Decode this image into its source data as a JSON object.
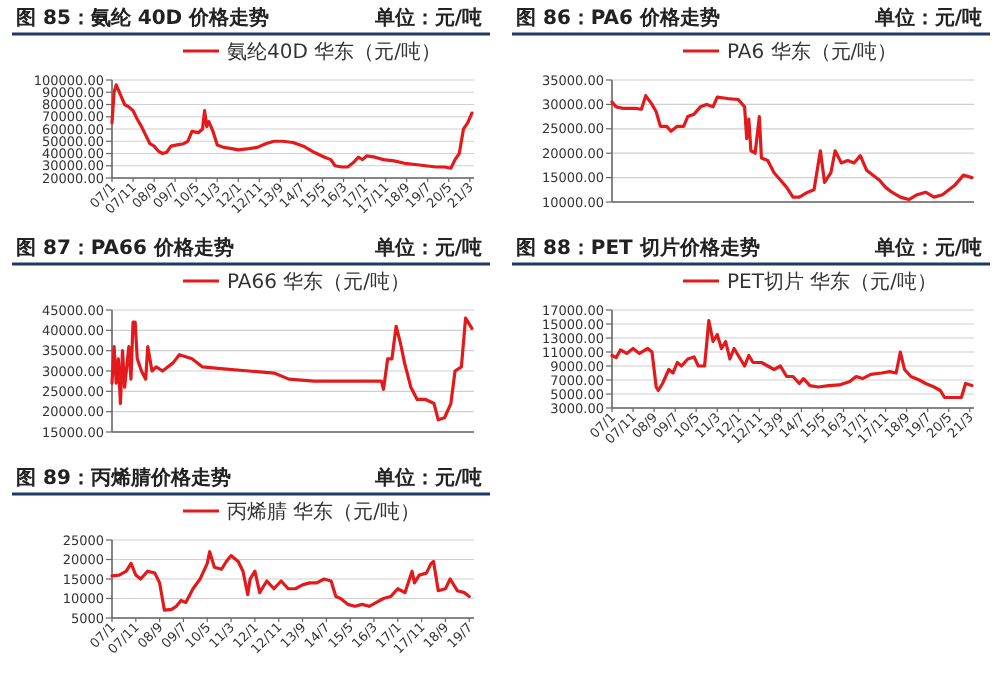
{
  "chart_data": [
    {
      "type": "line",
      "title": "图 85：氨纶 40D 价格走势",
      "subtitle": "单位：元/吨",
      "grid": "y",
      "legend": "top",
      "x": [
        "2007-01",
        "2007-02",
        "2007-03",
        "2007-05",
        "2007-07",
        "2007-09",
        "2007-11",
        "2008-01",
        "2008-03",
        "2008-05",
        "2008-07",
        "2008-09",
        "2008-11",
        "2009-01",
        "2009-03",
        "2009-05",
        "2009-08",
        "2009-11",
        "2010-01",
        "2010-03",
        "2010-06",
        "2010-08",
        "2010-09",
        "2010-10",
        "2010-11",
        "2011-01",
        "2011-03",
        "2011-06",
        "2011-10",
        "2012-01",
        "2012-06",
        "2012-10",
        "2013-02",
        "2013-06",
        "2013-10",
        "2014-03",
        "2014-08",
        "2015-01",
        "2015-06",
        "2015-09",
        "2015-11",
        "2016-02",
        "2016-05",
        "2016-08",
        "2016-10",
        "2016-12",
        "2017-02",
        "2017-06",
        "2017-10",
        "2018-03",
        "2018-08",
        "2019-01",
        "2019-06",
        "2019-11",
        "2020-03",
        "2020-06",
        "2020-08",
        "2020-10",
        "2020-12",
        "2021-02",
        "2021-04"
      ],
      "series": [
        {
          "name": "氨纶40D 华东（元/吨）",
          "color": "#e31a1c",
          "values": [
            65000,
            90000,
            96000,
            88000,
            80000,
            78000,
            75000,
            68000,
            62000,
            55000,
            48000,
            46000,
            42000,
            40000,
            41000,
            46000,
            47000,
            48000,
            50000,
            58000,
            57000,
            60000,
            75000,
            62000,
            66000,
            58000,
            47000,
            45000,
            44000,
            43000,
            44000,
            45000,
            48000,
            50000,
            50000,
            49000,
            46000,
            41000,
            37000,
            35000,
            30000,
            29000,
            29000,
            33000,
            37000,
            35000,
            38000,
            37000,
            35000,
            34000,
            32000,
            31000,
            30000,
            29000,
            29000,
            28000,
            35000,
            40000,
            60000,
            65000,
            73000
          ]
        }
      ],
      "xlim": [
        "2007-01",
        "2021-05"
      ],
      "xticks": [
        {
          "value": "2007-01",
          "label": "07/1"
        },
        {
          "value": "2007-11",
          "label": "07/11"
        },
        {
          "value": "2008-09",
          "label": "08/9"
        },
        {
          "value": "2009-07",
          "label": "09/7"
        },
        {
          "value": "2010-05",
          "label": "10/5"
        },
        {
          "value": "2011-03",
          "label": "11/3"
        },
        {
          "value": "2012-01",
          "label": "12/1"
        },
        {
          "value": "2012-11",
          "label": "12/11"
        },
        {
          "value": "2013-09",
          "label": "13/9"
        },
        {
          "value": "2014-07",
          "label": "14/7"
        },
        {
          "value": "2015-05",
          "label": "15/5"
        },
        {
          "value": "2016-03",
          "label": "16/3"
        },
        {
          "value": "2017-01",
          "label": "17/1"
        },
        {
          "value": "2017-11",
          "label": "17/11"
        },
        {
          "value": "2018-09",
          "label": "18/9"
        },
        {
          "value": "2019-07",
          "label": "19/7"
        },
        {
          "value": "2020-05",
          "label": "20/5"
        },
        {
          "value": "2021-03",
          "label": "21/3"
        }
      ],
      "ylim": [
        20000,
        100000
      ],
      "yticks": [
        {
          "value": 20000,
          "label": "20000.00"
        },
        {
          "value": 30000,
          "label": "30000.00"
        },
        {
          "value": 40000,
          "label": "40000.00"
        },
        {
          "value": 50000,
          "label": "50000.00"
        },
        {
          "value": 60000,
          "label": "60000.00"
        },
        {
          "value": 70000,
          "label": "70000.00"
        },
        {
          "value": 80000,
          "label": "80000.00"
        },
        {
          "value": 90000,
          "label": "90000.00"
        },
        {
          "value": 100000,
          "label": "100000.00"
        }
      ]
    },
    {
      "type": "line",
      "title": "图 86：PA6 价格走势",
      "subtitle": "单位：元/吨",
      "grid": "y",
      "legend": "top",
      "tick_labels": "y",
      "x": [
        "2007-01",
        "2007-03",
        "2007-06",
        "2007-12",
        "2008-03",
        "2008-05",
        "2008-08",
        "2008-10",
        "2008-12",
        "2009-03",
        "2009-05",
        "2009-08",
        "2009-11",
        "2010-01",
        "2010-04",
        "2010-07",
        "2010-10",
        "2011-01",
        "2011-03",
        "2011-08",
        "2012-01",
        "2012-04",
        "2012-05",
        "2012-06",
        "2012-07",
        "2012-09",
        "2012-11",
        "2012-12",
        "2013-03",
        "2013-06",
        "2013-09",
        "2013-12",
        "2014-03",
        "2014-06",
        "2014-10",
        "2015-01",
        "2015-04",
        "2015-06",
        "2015-09",
        "2015-11",
        "2016-02",
        "2016-05",
        "2016-08",
        "2016-11",
        "2017-02",
        "2017-05",
        "2017-08",
        "2017-11",
        "2018-02",
        "2018-06",
        "2018-10",
        "2019-02",
        "2019-06",
        "2019-10",
        "2020-02",
        "2020-08",
        "2020-12",
        "2021-04"
      ],
      "series": [
        {
          "name": "PA6 华东（元/吨）",
          "color": "#e31a1c",
          "values": [
            30500,
            29500,
            29200,
            29200,
            29000,
            31800,
            30000,
            28500,
            25500,
            25500,
            24500,
            25500,
            25500,
            27500,
            28000,
            29500,
            30000,
            29500,
            31500,
            31200,
            31000,
            29500,
            23000,
            27000,
            20500,
            20000,
            27500,
            19000,
            18500,
            16000,
            14500,
            13000,
            11000,
            11000,
            12000,
            12500,
            20500,
            14000,
            16000,
            20500,
            18000,
            18500,
            18000,
            19500,
            16500,
            15500,
            14500,
            13000,
            12000,
            11000,
            10500,
            11500,
            12000,
            11000,
            11500,
            13500,
            15500,
            15000
          ]
        }
      ],
      "xlim": [
        "2007-01",
        "2021-05"
      ],
      "ylim": [
        10000,
        35000
      ],
      "yticks": [
        {
          "value": 10000,
          "label": "10000.00"
        },
        {
          "value": 15000,
          "label": "15000.00"
        },
        {
          "value": 20000,
          "label": "20000.00"
        },
        {
          "value": 25000,
          "label": "25000.00"
        },
        {
          "value": 30000,
          "label": "30000.00"
        },
        {
          "value": 35000,
          "label": "35000.00"
        }
      ]
    },
    {
      "type": "line",
      "title": "图 87：PA66 价格走势",
      "subtitle": "单位：元/吨",
      "grid": "y",
      "legend": "top",
      "tick_labels": "y",
      "x": [
        "2007-01",
        "2007-02",
        "2007-03",
        "2007-04",
        "2007-05",
        "2007-06",
        "2007-07",
        "2007-09",
        "2007-10",
        "2007-11",
        "2007-12",
        "2008-01",
        "2008-03",
        "2008-05",
        "2008-06",
        "2008-08",
        "2008-10",
        "2009-01",
        "2009-06",
        "2009-09",
        "2010-03",
        "2010-08",
        "2011-06",
        "2012-06",
        "2013-06",
        "2014-01",
        "2015-01",
        "2016-01",
        "2017-01",
        "2017-09",
        "2017-10",
        "2017-12",
        "2018-02",
        "2018-04",
        "2018-06",
        "2018-08",
        "2018-11",
        "2019-02",
        "2019-06",
        "2019-10",
        "2019-12",
        "2020-03",
        "2020-06",
        "2020-08",
        "2020-11",
        "2021-01",
        "2021-04"
      ],
      "series": [
        {
          "name": "PA66 华东（元/吨）",
          "color": "#e31a1c",
          "values": [
            27000,
            36000,
            27000,
            33000,
            22000,
            35000,
            26000,
            36000,
            28000,
            42000,
            42000,
            33000,
            30000,
            28000,
            36000,
            30000,
            31000,
            30000,
            32000,
            34000,
            33000,
            31000,
            30500,
            30000,
            29500,
            28000,
            27500,
            27500,
            27500,
            27500,
            25500,
            33000,
            33000,
            41000,
            37000,
            32000,
            26000,
            23000,
            23000,
            22000,
            18000,
            18500,
            22000,
            30000,
            31000,
            43000,
            40500
          ]
        }
      ],
      "xlim": [
        "2007-01",
        "2021-05"
      ],
      "ylim": [
        15000,
        45000
      ],
      "yticks": [
        {
          "value": 15000,
          "label": "15000.00"
        },
        {
          "value": 20000,
          "label": "20000.00"
        },
        {
          "value": 25000,
          "label": "25000.00"
        },
        {
          "value": 30000,
          "label": "30000.00"
        },
        {
          "value": 35000,
          "label": "35000.00"
        },
        {
          "value": 40000,
          "label": "40000.00"
        },
        {
          "value": 45000,
          "label": "45000.00"
        }
      ]
    },
    {
      "type": "line",
      "title": "图 88：PET 切片价格走势",
      "subtitle": "单位：元/吨",
      "grid": "y",
      "legend": "top",
      "x": [
        "2007-01",
        "2007-03",
        "2007-05",
        "2007-08",
        "2007-11",
        "2008-02",
        "2008-06",
        "2008-08",
        "2008-10",
        "2008-11",
        "2009-01",
        "2009-04",
        "2009-06",
        "2009-08",
        "2009-10",
        "2010-01",
        "2010-04",
        "2010-06",
        "2010-09",
        "2010-11",
        "2011-01",
        "2011-03",
        "2011-05",
        "2011-07",
        "2011-09",
        "2011-11",
        "2012-01",
        "2012-04",
        "2012-06",
        "2012-08",
        "2012-12",
        "2013-06",
        "2013-09",
        "2013-12",
        "2014-03",
        "2014-06",
        "2014-08",
        "2014-11",
        "2015-03",
        "2015-08",
        "2016-01",
        "2016-06",
        "2016-09",
        "2016-12",
        "2017-04",
        "2017-09",
        "2018-01",
        "2018-04",
        "2018-06",
        "2018-08",
        "2018-11",
        "2019-03",
        "2019-06",
        "2019-10",
        "2020-01",
        "2020-03",
        "2020-07",
        "2020-11",
        "2021-01",
        "2021-04"
      ],
      "series": [
        {
          "name": "PET切片 华东（元/吨）",
          "color": "#e31a1c",
          "values": [
            10500,
            10200,
            11300,
            10800,
            11500,
            10800,
            11500,
            11000,
            6000,
            5500,
            6500,
            8500,
            8000,
            9500,
            9000,
            10000,
            10300,
            9000,
            9000,
            15500,
            12500,
            13500,
            11500,
            12500,
            10000,
            11500,
            10500,
            9000,
            10500,
            9500,
            9500,
            8500,
            9000,
            7500,
            7500,
            6500,
            7200,
            6200,
            6000,
            6200,
            6300,
            6800,
            7500,
            7200,
            7800,
            8000,
            8200,
            8000,
            11000,
            8500,
            7500,
            7000,
            6500,
            6000,
            5500,
            4500,
            4500,
            4500,
            6500,
            6200
          ]
        }
      ],
      "xlim": [
        "2007-01",
        "2021-05"
      ],
      "xticks": [
        {
          "value": "2007-01",
          "label": "07/1"
        },
        {
          "value": "2007-11",
          "label": "07/11"
        },
        {
          "value": "2008-09",
          "label": "08/9"
        },
        {
          "value": "2009-07",
          "label": "09/7"
        },
        {
          "value": "2010-05",
          "label": "10/5"
        },
        {
          "value": "2011-03",
          "label": "11/3"
        },
        {
          "value": "2012-01",
          "label": "12/1"
        },
        {
          "value": "2012-11",
          "label": "12/11"
        },
        {
          "value": "2013-09",
          "label": "13/9"
        },
        {
          "value": "2014-07",
          "label": "14/7"
        },
        {
          "value": "2015-05",
          "label": "15/5"
        },
        {
          "value": "2016-03",
          "label": "16/3"
        },
        {
          "value": "2017-01",
          "label": "17/1"
        },
        {
          "value": "2017-11",
          "label": "17/11"
        },
        {
          "value": "2018-09",
          "label": "18/9"
        },
        {
          "value": "2019-07",
          "label": "19/7"
        },
        {
          "value": "2020-05",
          "label": "20/5"
        },
        {
          "value": "2021-03",
          "label": "21/3"
        }
      ],
      "ylim": [
        3000,
        17000
      ],
      "yticks": [
        {
          "value": 3000,
          "label": "3000.00"
        },
        {
          "value": 5000,
          "label": "5000.00"
        },
        {
          "value": 7000,
          "label": "7000.00"
        },
        {
          "value": 9000,
          "label": "9000.00"
        },
        {
          "value": 11000,
          "label": "11000.00"
        },
        {
          "value": 13000,
          "label": "13000.00"
        },
        {
          "value": 15000,
          "label": "15000.00"
        },
        {
          "value": 17000,
          "label": "17000.00"
        }
      ]
    },
    {
      "type": "line",
      "title": "图 89：丙烯腈价格走势",
      "subtitle": "单位：元/吨",
      "grid": "y",
      "legend": "top",
      "x": [
        "2007-01",
        "2007-04",
        "2007-07",
        "2007-09",
        "2007-11",
        "2008-01",
        "2008-04",
        "2008-07",
        "2008-09",
        "2008-11",
        "2009-02",
        "2009-04",
        "2009-06",
        "2009-08",
        "2009-11",
        "2010-02",
        "2010-05",
        "2010-06",
        "2010-08",
        "2010-11",
        "2011-01",
        "2011-03",
        "2011-06",
        "2011-08",
        "2011-10",
        "2011-11",
        "2012-01",
        "2012-03",
        "2012-06",
        "2012-09",
        "2012-12",
        "2013-03",
        "2013-06",
        "2013-09",
        "2013-12",
        "2014-03",
        "2014-06",
        "2014-09",
        "2014-11",
        "2015-01",
        "2015-04",
        "2015-07",
        "2015-10",
        "2016-01",
        "2016-04",
        "2016-07",
        "2016-10",
        "2017-01",
        "2017-04",
        "2017-07",
        "2017-08",
        "2017-10",
        "2018-01",
        "2018-03",
        "2018-04",
        "2018-06",
        "2018-09",
        "2018-11",
        "2019-02",
        "2019-05",
        "2019-07"
      ],
      "series": [
        {
          "name": "丙烯腈 华东（元/吨）",
          "color": "#e31a1c",
          "values": [
            15800,
            16000,
            17000,
            19000,
            16000,
            15000,
            17000,
            16500,
            14000,
            7000,
            7200,
            8000,
            9500,
            9000,
            12500,
            15000,
            19000,
            22000,
            18000,
            17500,
            19500,
            21000,
            19500,
            17000,
            11000,
            15000,
            17000,
            11500,
            14500,
            12500,
            14500,
            12500,
            12500,
            13500,
            14000,
            14000,
            15000,
            14500,
            10500,
            10000,
            8500,
            8000,
            8500,
            8000,
            9000,
            10000,
            10500,
            12500,
            11500,
            17000,
            14000,
            16000,
            16500,
            19000,
            19500,
            12000,
            12500,
            15000,
            12000,
            11500,
            10500
          ]
        }
      ],
      "xlim": [
        "2007-01",
        "2019-09"
      ],
      "xticks": [
        {
          "value": "2007-01",
          "label": "07/1"
        },
        {
          "value": "2007-11",
          "label": "07/11"
        },
        {
          "value": "2008-09",
          "label": "08/9"
        },
        {
          "value": "2009-07",
          "label": "09/7"
        },
        {
          "value": "2010-05",
          "label": "10/5"
        },
        {
          "value": "2011-03",
          "label": "11/3"
        },
        {
          "value": "2012-01",
          "label": "12/1"
        },
        {
          "value": "2012-11",
          "label": "12/11"
        },
        {
          "value": "2013-09",
          "label": "13/9"
        },
        {
          "value": "2014-07",
          "label": "14/7"
        },
        {
          "value": "2015-05",
          "label": "15/5"
        },
        {
          "value": "2016-03",
          "label": "16/3"
        },
        {
          "value": "2017-01",
          "label": "17/1"
        },
        {
          "value": "2017-11",
          "label": "17/11"
        },
        {
          "value": "2018-09",
          "label": "18/9"
        },
        {
          "value": "2019-07",
          "label": "19/7"
        }
      ],
      "ylim": [
        5000,
        25000
      ],
      "yticks": [
        5000,
        10000,
        15000,
        20000,
        25000
      ]
    }
  ]
}
